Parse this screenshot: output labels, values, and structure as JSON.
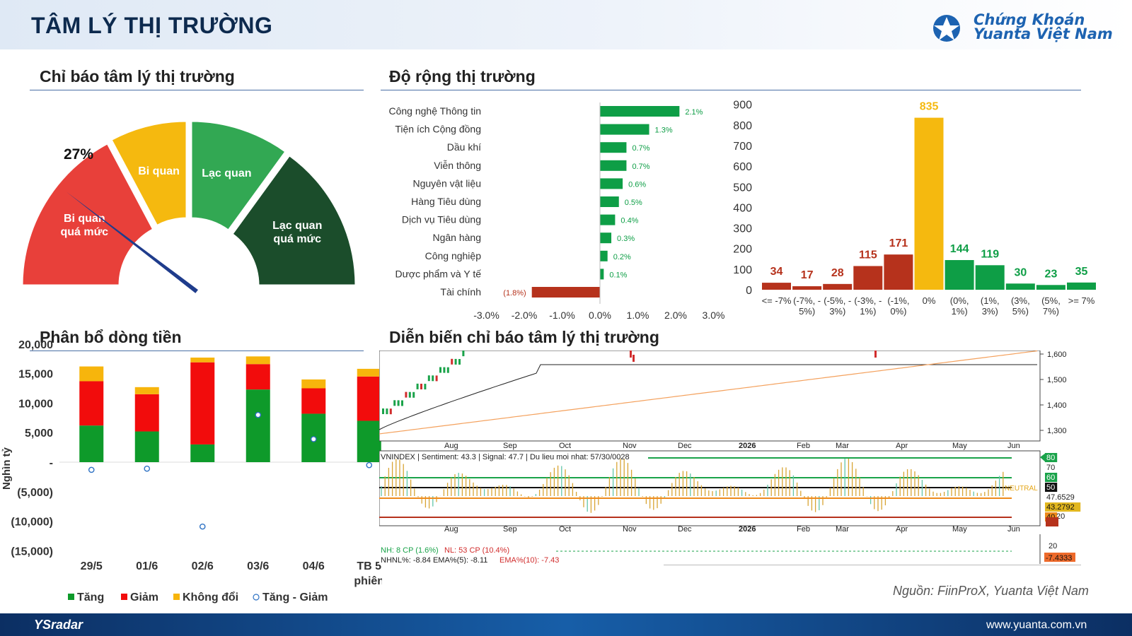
{
  "header": {
    "title": "TÂM LÝ THỊ TRƯỜNG",
    "logo_line1": "Chứng Khoán",
    "logo_line2": "Yuanta Việt Nam"
  },
  "sections": {
    "gauge": "Chỉ báo tâm lý thị trường",
    "breadth": "Độ rộng thị trường",
    "flow": "Phân bổ dòng tiền",
    "history": "Diễn biến chỉ báo tâm lý thị trường"
  },
  "chart_data": [
    {
      "type": "gauge",
      "value": 27,
      "value_label": "27%",
      "segments": [
        {
          "label1": "Bi quan",
          "label2": "quá mức",
          "color": "#e8403a"
        },
        {
          "label1": "Bi quan",
          "label2": "",
          "color": "#f5b90f"
        },
        {
          "label1": "Lạc quan",
          "label2": "",
          "color": "#32a853"
        },
        {
          "label1": "Lạc quan",
          "label2": "quá mức",
          "color": "#1b4d2b"
        }
      ]
    },
    {
      "type": "bar",
      "orientation": "horizontal",
      "categories": [
        "Công nghệ Thông tin",
        "Tiện ích Cộng đồng",
        "Dầu khí",
        "Viễn thông",
        "Nguyên vật liệu",
        "Hàng Tiêu dùng",
        "Dịch vụ Tiêu dùng",
        "Ngân hàng",
        "Công nghiệp",
        "Dược phẩm và Y tế",
        "Tài chính"
      ],
      "values": [
        2.1,
        1.3,
        0.7,
        0.7,
        0.6,
        0.5,
        0.4,
        0.3,
        0.2,
        0.1,
        -1.8
      ],
      "value_labels": [
        "2.1%",
        "1.3%",
        "0.7%",
        "0.7%",
        "0.6%",
        "0.5%",
        "0.4%",
        "0.3%",
        "0.2%",
        "0.1%",
        "(1.8%)"
      ],
      "xlim": [
        -3,
        3
      ],
      "x_ticks": [
        "-3.0%",
        "-2.0%",
        "-1.0%",
        "0.0%",
        "1.0%",
        "2.0%",
        "3.0%"
      ],
      "colors": {
        "positive": "#0e9e46",
        "negative": "#b6321c"
      }
    },
    {
      "type": "bar",
      "categories": [
        [
          "<= -7%"
        ],
        [
          "(-7%, -",
          "5%)"
        ],
        [
          "(-5%, -",
          "3%)"
        ],
        [
          "(-3%, -",
          "1%)"
        ],
        [
          "(-1%,",
          "0%)"
        ],
        [
          "0%"
        ],
        [
          "(0%,",
          "1%)"
        ],
        [
          "(1%,",
          "3%)"
        ],
        [
          "(3%,",
          "5%)"
        ],
        [
          "(5%,",
          "7%)"
        ],
        [
          ">= 7%"
        ]
      ],
      "values": [
        34,
        17,
        28,
        115,
        171,
        835,
        144,
        119,
        30,
        23,
        35
      ],
      "colors": [
        "#b6321c",
        "#b6321c",
        "#b6321c",
        "#b6321c",
        "#b6321c",
        "#f5b90f",
        "#0e9e46",
        "#0e9e46",
        "#0e9e46",
        "#0e9e46",
        "#0e9e46"
      ],
      "ylim": [
        0,
        900
      ],
      "y_ticks": [
        0,
        100,
        200,
        300,
        400,
        500,
        600,
        700,
        800,
        900
      ]
    },
    {
      "type": "bar",
      "stacked": true,
      "categories": [
        [
          "29/5"
        ],
        [
          "01/6"
        ],
        [
          "02/6"
        ],
        [
          "03/6"
        ],
        [
          "04/6"
        ],
        [
          "TB 5",
          "phiên"
        ]
      ],
      "series": [
        {
          "name": "Tăng",
          "values": [
            6200,
            5200,
            3000,
            12300,
            8200,
            7000
          ],
          "color": "#0e9a2a"
        },
        {
          "name": "Giảm",
          "values": [
            7500,
            6300,
            13900,
            4300,
            4300,
            7500
          ],
          "color": "#f20c0c"
        },
        {
          "name": "Không đổi",
          "values": [
            2500,
            1200,
            800,
            1300,
            1500,
            1300
          ],
          "color": "#f7b50c"
        }
      ],
      "line_series": {
        "name": "Tăng - Giảm",
        "values": [
          -1300,
          -1100,
          -10900,
          8000,
          3900,
          -500
        ],
        "color": "#2e72c4"
      },
      "ylabel": "Nghìn tỷ",
      "ylim": [
        -15000,
        20000
      ],
      "y_ticks": [
        "(15,000)",
        "(10,000)",
        "(5,000)",
        "-",
        "5,000",
        "10,000",
        "15,000",
        "20,000"
      ]
    },
    {
      "type": "line",
      "months": [
        "Aug",
        "Sep",
        "Oct",
        "Nov",
        "Dec",
        "2026",
        "Feb",
        "Mar",
        "Apr",
        "May",
        "Jun"
      ],
      "price_axis": [
        "1,600",
        "1,500",
        "1,400",
        "1,300"
      ],
      "sentiment_axis": [
        "80",
        "70",
        "60",
        "50",
        "47.6529",
        "43.2792",
        "40",
        "20"
      ],
      "info_line": "VNINDEX  |  Sentiment: 43.3  |  Signal: 47.7  |  Du lieu moi nhat: 57/30/0028",
      "neutral_label": "NEUTRAL",
      "hl_line1": "NH: 8 CP (1.6%)",
      "hl_line1b": "NL: 53 CP (10.4%)",
      "hl_line2": "NHNL%: -8.84  EMA%(5): -8.11",
      "hl_line2b": "EMA%(10): -7.43",
      "bottom_axis": [
        "20",
        "-7.4333"
      ]
    }
  ],
  "legend_items": [
    "Tăng",
    "Giảm",
    "Không đổi",
    "Tăng - Giảm"
  ],
  "footer": {
    "brand": "YSradar",
    "url": "www.yuanta.com.vn",
    "source": "Nguồn: FiinProX, Yuanta Việt Nam"
  }
}
